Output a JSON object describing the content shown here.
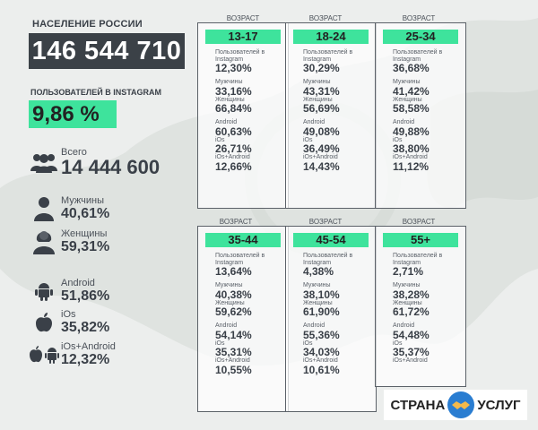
{
  "header": {
    "population_label": "НАСЕЛЕНИЕ РОССИИ",
    "population_value": "146 544 710",
    "instagram_label": "ПОЛЬЗОВАТЕЛЕЙ В INSTAGRAM",
    "instagram_share": "9,86 %"
  },
  "summary": {
    "total_label": "Всего",
    "total_value": "14 444 600",
    "men_label": "Мужчины",
    "men_value": "40,61%",
    "women_label": "Женщины",
    "women_value": "59,31%",
    "android_label": "Android",
    "android_value": "51,86%",
    "ios_label": "iOs",
    "ios_value": "35,82%",
    "both_label": "iOs+Android",
    "both_value": "12,32%"
  },
  "row_labels": {
    "age_caption": "ВОЗРАСТ",
    "users": "Пользователей в Instagram",
    "men": "Мужчины",
    "women": "Женщины",
    "android": "Android",
    "ios": "iOs",
    "both": "iOs+Android"
  },
  "cards": [
    {
      "age": "13-17",
      "users": "12,30%",
      "men": "33,16%",
      "women": "66,84%",
      "android": "60,63%",
      "ios": "26,71%",
      "both": "12,66%"
    },
    {
      "age": "18-24",
      "users": "30,29%",
      "men": "43,31%",
      "women": "56,69%",
      "android": "49,08%",
      "ios": "36,49%",
      "both": "14,43%"
    },
    {
      "age": "25-34",
      "users": "36,68%",
      "men": "41,42%",
      "women": "58,58%",
      "android": "49,88%",
      "ios": "38,80%",
      "both": "11,12%"
    },
    {
      "age": "35-44",
      "users": "13,64%",
      "men": "40,38%",
      "women": "59,62%",
      "android": "54,14%",
      "ios": "35,31%",
      "both": "10,55%"
    },
    {
      "age": "45-54",
      "users": "4,38%",
      "men": "38,10%",
      "women": "61,90%",
      "android": "55,36%",
      "ios": "34,03%",
      "both": "10,61%"
    },
    {
      "age": "55+",
      "users": "2,71%",
      "men": "38,28%",
      "women": "61,72%",
      "android": "54,48%",
      "ios": "35,37%",
      "both": ""
    }
  ],
  "logo": {
    "left_text": "СТРАНА",
    "right_text": "УСЛУГ"
  },
  "colors": {
    "accent": "#3ee39c",
    "dark": "#3b4147",
    "logo_blue": "#2a7dd1"
  }
}
